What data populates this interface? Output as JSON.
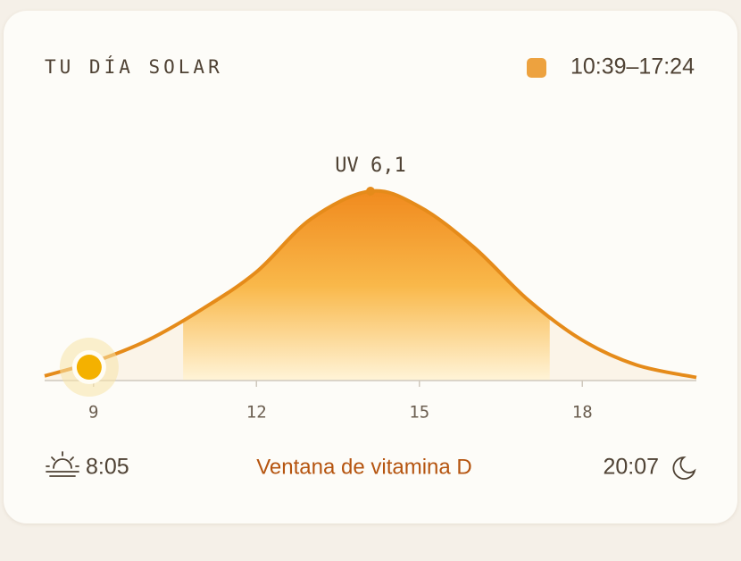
{
  "header": {
    "title": "TU DÍA SOLAR",
    "window_label": "10:39–17:24"
  },
  "chart_data": {
    "type": "area",
    "x": [
      8.1,
      9,
      10,
      11,
      12,
      13,
      14.1,
      15,
      16,
      17,
      18,
      19,
      20.1
    ],
    "values": [
      0.15,
      0.6,
      1.3,
      2.3,
      3.5,
      5.2,
      6.1,
      5.6,
      4.3,
      2.6,
      1.3,
      0.5,
      0.1
    ],
    "xlim": [
      8.1,
      20.1
    ],
    "ylim": [
      0,
      8
    ],
    "xticks": [
      9,
      12,
      15,
      18
    ],
    "color": "#e58b1a",
    "window": [
      10.65,
      17.4
    ],
    "window_color": "#eda23f",
    "annotation": {
      "x": 14.1,
      "value": 6.1,
      "label": "UV 6,1"
    },
    "current": {
      "x": 8.92,
      "value": 0.43
    }
  },
  "footer": {
    "sunrise": "8:05",
    "label": "Ventana de vitamina D",
    "sunset": "20:07"
  }
}
